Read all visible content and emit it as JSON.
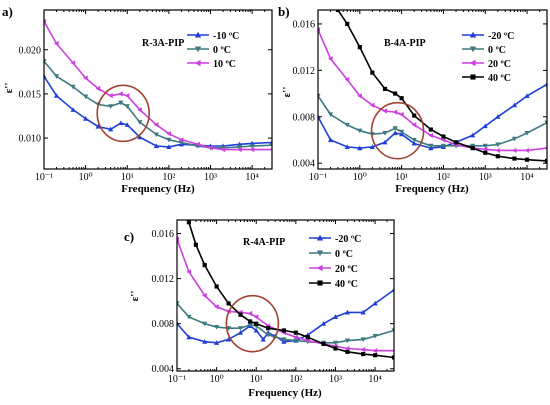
{
  "chart_data": [
    {
      "type": "line",
      "panel_label": "a)",
      "sample": "R-3A-PIP",
      "xlabel": "Frequency (Hz)",
      "ylabel": "ε''",
      "xscale": "log",
      "xlim": [
        0.1,
        30000
      ],
      "ylim": [
        0.0065,
        0.0245
      ],
      "xticks": [
        0.1,
        1,
        10,
        100,
        1000,
        10000
      ],
      "xtick_labels": [
        "10⁻¹",
        "10⁰",
        "10¹",
        "10²",
        "10³",
        "10⁴"
      ],
      "yticks": [
        0.01,
        0.015,
        0.02
      ],
      "ytick_labels": [
        "0.010",
        "0.015",
        "0.020"
      ],
      "legend_position": "top-right",
      "grid": false,
      "highlight": {
        "x": 8,
        "y": 0.0128
      },
      "series": [
        {
          "name": "-10 ºC",
          "color": "#1f3fd6",
          "marker": "triangle-up",
          "x": [
            0.1,
            0.2,
            0.5,
            1,
            2,
            4,
            7,
            10,
            20,
            50,
            100,
            200,
            500,
            1000,
            2000,
            5000,
            10000,
            30000
          ],
          "y": [
            0.017,
            0.0148,
            0.0132,
            0.0122,
            0.0113,
            0.011,
            0.0117,
            0.0115,
            0.0101,
            0.0091,
            0.009,
            0.0093,
            0.0092,
            0.0091,
            0.0091,
            0.0093,
            0.0094,
            0.0095
          ]
        },
        {
          "name": "0 ºC",
          "color": "#3d7a80",
          "marker": "triangle-down",
          "x": [
            0.1,
            0.2,
            0.5,
            1,
            2,
            4,
            7,
            10,
            20,
            50,
            100,
            200,
            500,
            1000,
            2000,
            5000,
            10000,
            30000
          ],
          "y": [
            0.0187,
            0.017,
            0.0158,
            0.0147,
            0.0138,
            0.0136,
            0.014,
            0.0136,
            0.0118,
            0.0104,
            0.0098,
            0.0095,
            0.0091,
            0.0089,
            0.0089,
            0.009,
            0.0091,
            0.0092
          ]
        },
        {
          "name": "10 ºC",
          "color": "#cc3fe0",
          "marker": "triangle-left",
          "x": [
            0.1,
            0.2,
            0.5,
            1,
            2,
            4,
            7,
            10,
            20,
            50,
            100,
            200,
            500,
            1000,
            2000,
            5000,
            10000,
            30000
          ],
          "y": [
            0.0232,
            0.0207,
            0.0185,
            0.0168,
            0.0156,
            0.0148,
            0.015,
            0.0148,
            0.0132,
            0.0115,
            0.0105,
            0.0098,
            0.0093,
            0.0089,
            0.0087,
            0.0087,
            0.0087,
            0.0087
          ]
        }
      ]
    },
    {
      "type": "line",
      "panel_label": "b)",
      "sample": "B-4A-PIP",
      "xlabel": "Frequency (Hz)",
      "ylabel": "ε''",
      "xscale": "log",
      "xlim": [
        0.1,
        30000
      ],
      "ylim": [
        0.0035,
        0.0172
      ],
      "xticks": [
        0.1,
        1,
        10,
        100,
        1000,
        10000
      ],
      "xtick_labels": [
        "10⁻¹",
        "10⁰",
        "10¹",
        "10²",
        "10³",
        "10⁴"
      ],
      "yticks": [
        0.004,
        0.008,
        0.012,
        0.016
      ],
      "ytick_labels": [
        "0.004",
        "0.008",
        "0.012",
        "0.016"
      ],
      "legend_position": "top-right",
      "grid": false,
      "highlight": {
        "x": 8,
        "y": 0.0068
      },
      "series": [
        {
          "name": "-20 ºC",
          "color": "#1f3fd6",
          "marker": "triangle-up",
          "x": [
            0.1,
            0.2,
            0.5,
            1,
            2,
            4,
            7,
            10,
            20,
            50,
            100,
            200,
            500,
            1000,
            2000,
            5000,
            10000,
            30000
          ],
          "y": [
            0.008,
            0.006,
            0.0054,
            0.0053,
            0.0054,
            0.0058,
            0.0066,
            0.0065,
            0.0057,
            0.0053,
            0.0054,
            0.0058,
            0.0064,
            0.0072,
            0.008,
            0.009,
            0.0098,
            0.0108
          ]
        },
        {
          "name": "0 ºC",
          "color": "#3d7a80",
          "marker": "triangle-down",
          "x": [
            0.1,
            0.2,
            0.5,
            1,
            2,
            4,
            7,
            10,
            20,
            50,
            100,
            200,
            500,
            1000,
            2000,
            5000,
            10000,
            30000
          ],
          "y": [
            0.0098,
            0.0082,
            0.0073,
            0.0068,
            0.0065,
            0.0066,
            0.007,
            0.0067,
            0.006,
            0.0055,
            0.0055,
            0.0055,
            0.0055,
            0.0055,
            0.0056,
            0.0061,
            0.0066,
            0.0075
          ]
        },
        {
          "name": "20 ºC",
          "color": "#cc3fe0",
          "marker": "triangle-left",
          "x": [
            0.1,
            0.2,
            0.5,
            1,
            2,
            4,
            7,
            10,
            20,
            50,
            100,
            200,
            500,
            1000,
            2000,
            5000,
            10000,
            30000
          ],
          "y": [
            0.0155,
            0.013,
            0.0112,
            0.0098,
            0.009,
            0.0085,
            0.0084,
            0.0082,
            0.0073,
            0.0064,
            0.006,
            0.0056,
            0.0053,
            0.0052,
            0.0051,
            0.0051,
            0.0051,
            0.0053
          ]
        },
        {
          "name": "40 ºC",
          "color": "#000000",
          "marker": "square",
          "x": [
            0.3,
            0.5,
            1,
            2,
            4,
            7,
            10,
            20,
            50,
            100,
            200,
            500,
            1000,
            2000,
            5000,
            10000,
            30000
          ],
          "y": [
            0.0172,
            0.016,
            0.014,
            0.0118,
            0.0104,
            0.01,
            0.0096,
            0.0081,
            0.0069,
            0.0063,
            0.0058,
            0.0053,
            0.0049,
            0.0046,
            0.0044,
            0.0043,
            0.0042
          ]
        }
      ]
    },
    {
      "type": "line",
      "panel_label": "c)",
      "sample": "R-4A-PIP",
      "xlabel": "Frequency (Hz)",
      "ylabel": "ε''",
      "xscale": "log",
      "xlim": [
        0.1,
        30000
      ],
      "ylim": [
        0.0038,
        0.0172
      ],
      "xticks": [
        0.1,
        1,
        10,
        100,
        1000,
        10000
      ],
      "xtick_labels": [
        "10⁻¹",
        "10⁰",
        "10¹",
        "10²",
        "10³",
        "10⁴"
      ],
      "yticks": [
        0.004,
        0.008,
        0.012,
        0.016
      ],
      "ytick_labels": [
        "0.004",
        "0.008",
        "0.012",
        "0.016"
      ],
      "legend_position": "top-right",
      "grid": false,
      "highlight": {
        "x": 8,
        "y": 0.008
      },
      "series": [
        {
          "name": "-20 ºC",
          "color": "#1f3fd6",
          "marker": "triangle-up",
          "x": [
            0.1,
            0.2,
            0.5,
            1,
            2,
            4,
            7,
            10,
            15,
            20,
            30,
            50,
            100,
            200,
            500,
            1000,
            2000,
            5000,
            10000,
            30000
          ],
          "y": [
            0.008,
            0.0068,
            0.0064,
            0.0063,
            0.0066,
            0.0072,
            0.0078,
            0.0074,
            0.0066,
            0.0072,
            0.0069,
            0.0064,
            0.0065,
            0.007,
            0.008,
            0.0086,
            0.009,
            0.009,
            0.0098,
            0.011
          ]
        },
        {
          "name": "0 ºC",
          "color": "#3d7a80",
          "marker": "triangle-down",
          "x": [
            0.1,
            0.2,
            0.5,
            1,
            2,
            4,
            7,
            10,
            20,
            50,
            100,
            200,
            500,
            1000,
            2000,
            5000,
            10000,
            30000
          ],
          "y": [
            0.0098,
            0.0086,
            0.008,
            0.0077,
            0.0076,
            0.0076,
            0.0079,
            0.0078,
            0.007,
            0.0066,
            0.0065,
            0.0064,
            0.0063,
            0.0063,
            0.0065,
            0.0066,
            0.0069,
            0.0074
          ]
        },
        {
          "name": "20 ºC",
          "color": "#cc3fe0",
          "marker": "triangle-left",
          "x": [
            0.1,
            0.2,
            0.5,
            1,
            2,
            4,
            7,
            10,
            20,
            50,
            100,
            200,
            500,
            1000,
            2000,
            5000,
            10000,
            30000
          ],
          "y": [
            0.0155,
            0.0126,
            0.0105,
            0.0095,
            0.0091,
            0.009,
            0.0089,
            0.0086,
            0.0078,
            0.0072,
            0.0068,
            0.0065,
            0.0062,
            0.006,
            0.0058,
            0.0057,
            0.0056,
            0.0056
          ]
        },
        {
          "name": "40 ºC",
          "color": "#000000",
          "marker": "square",
          "x": [
            0.2,
            0.3,
            0.5,
            1,
            2,
            4,
            7,
            10,
            20,
            50,
            100,
            200,
            500,
            1000,
            2000,
            5000,
            10000,
            30000
          ],
          "y": [
            0.017,
            0.015,
            0.0132,
            0.0113,
            0.0098,
            0.0088,
            0.0082,
            0.008,
            0.0076,
            0.0074,
            0.0072,
            0.0068,
            0.0062,
            0.0058,
            0.0055,
            0.0053,
            0.0052,
            0.005
          ]
        }
      ]
    }
  ],
  "style": {
    "highlight_color": "#a14232",
    "axis_color": "#000000"
  }
}
